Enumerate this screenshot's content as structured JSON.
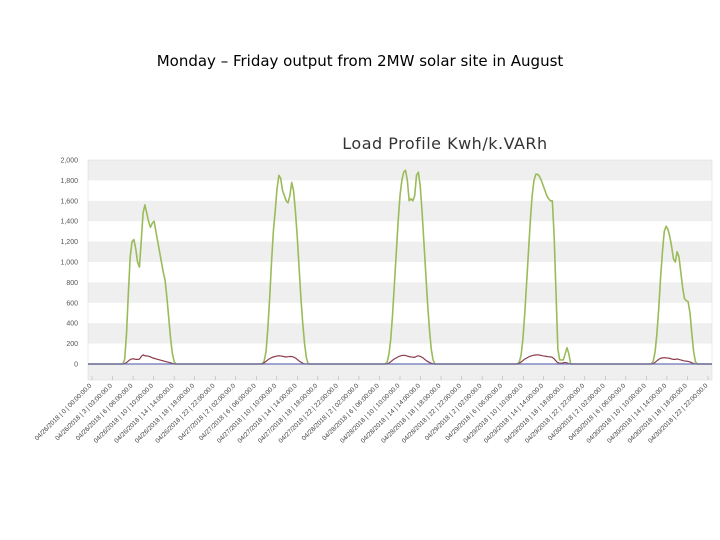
{
  "slide": {
    "title": "Monday – Friday output from 2MW solar site in August"
  },
  "colors": {
    "kwh": "#9bbb59",
    "kvarh": "#8b3a4a",
    "baseline": "#6b74b8",
    "band": "#efefef"
  },
  "chart_data": {
    "type": "line",
    "title": "Load Profile Kwh/k.VARh",
    "xlabel": "",
    "ylabel": "",
    "ylim": [
      0,
      2000
    ],
    "yticks": [
      0,
      200,
      400,
      600,
      800,
      1000,
      1200,
      1400,
      1600,
      1800,
      2000
    ],
    "ytick_labels": [
      "0",
      "200",
      "400",
      "600",
      "800",
      "1,000",
      "1,200",
      "1,400",
      "1,600",
      "1,800",
      "2,000"
    ],
    "grid": "alternating horizontal bands",
    "x_labels": [
      "04/26/2018 | 0 | 00:00:00.0",
      "04/26/2018 | 3 | 03:00:00.0",
      "04/26/2018 | 6 | 06:00:00.0",
      "04/26/2018 | 10 | 10:00:00.0",
      "04/26/2018 | 14 | 14:00:00.0",
      "04/26/2018 | 18 | 18:00:00.0",
      "04/26/2018 | 22 | 22:00:00.0",
      "04/27/2018 | 2 | 02:00:00.0",
      "04/27/2018 | 6 | 06:00:00.0",
      "04/27/2018 | 10 | 10:00:00.0",
      "04/27/2018 | 14 | 14:00:00.0",
      "04/27/2018 | 18 | 18:00:00.0",
      "04/27/2018 | 22 | 22:00:00.0",
      "04/28/2018 | 2 | 02:00:00.0",
      "04/28/2018 | 6 | 06:00:00.0",
      "04/28/2018 | 10 | 10:00:00.0",
      "04/28/2018 | 14 | 14:00:00.0",
      "04/28/2018 | 18 | 18:00:00.0",
      "04/28/2018 | 22 | 22:00:00.0",
      "04/29/2018 | 2 | 02:00:00.0",
      "04/29/2018 | 6 | 06:00:00.0",
      "04/29/2018 | 10 | 10:00:00.0",
      "04/29/2018 | 14 | 14:00:00.0",
      "04/29/2018 | 18 | 18:00:00.0",
      "04/29/2018 | 22 | 22:00:00.0",
      "04/30/2018 | 2 | 02:00:00.0",
      "04/30/2018 | 6 | 06:00:00.0",
      "04/30/2018 | 10 | 10:00:00.0",
      "04/30/2018 | 14 | 14:00:00.0",
      "04/30/2018 | 18 | 18:00:00.0",
      "04/30/2018 | 22 | 22:00:00.0"
    ],
    "series": [
      {
        "values": [
          0,
          0,
          0,
          0,
          0,
          0,
          0,
          0,
          0,
          0,
          0,
          0,
          0,
          0,
          0,
          0,
          0,
          0,
          0,
          0,
          50,
          300,
          700,
          1050,
          1200,
          1220,
          1130,
          1000,
          950,
          1200,
          1480,
          1560,
          1480,
          1400,
          1340,
          1380,
          1400,
          1300,
          1200,
          1100,
          1000,
          900,
          820,
          650,
          450,
          250,
          100,
          20,
          0,
          0,
          0,
          0,
          0,
          0,
          0,
          0,
          0,
          0,
          0,
          0,
          0,
          0,
          0,
          0,
          0,
          0,
          0,
          0,
          0,
          0,
          0,
          0,
          0,
          0,
          0,
          0,
          0,
          0,
          0,
          0,
          0,
          0,
          0,
          0,
          0,
          0,
          0,
          0,
          0,
          0,
          0,
          0,
          0,
          0,
          0,
          0,
          30,
          120,
          350,
          650,
          1000,
          1300,
          1500,
          1720,
          1850,
          1820,
          1700,
          1650,
          1600,
          1580,
          1650,
          1780,
          1700,
          1500,
          1250,
          950,
          650,
          400,
          200,
          60,
          0,
          0,
          0,
          0,
          0,
          0,
          0,
          0,
          0,
          0,
          0,
          0,
          0,
          0,
          0,
          0,
          0,
          0,
          0,
          0,
          0,
          0,
          0,
          0,
          0,
          0,
          0,
          0,
          0,
          0,
          0,
          0,
          0,
          0,
          0,
          0,
          0,
          0,
          0,
          0,
          0,
          0,
          0,
          20,
          100,
          250,
          500,
          800,
          1100,
          1400,
          1650,
          1800,
          1880,
          1900,
          1800,
          1600,
          1620,
          1600,
          1650,
          1850,
          1880,
          1750,
          1500,
          1200,
          900,
          600,
          350,
          150,
          40,
          0,
          0,
          0,
          0,
          0,
          0,
          0,
          0,
          0,
          0,
          0,
          0,
          0,
          0,
          0,
          0,
          0,
          0,
          0,
          0,
          0,
          0,
          0,
          0,
          0,
          0,
          0,
          0,
          0,
          0,
          0,
          0,
          0,
          0,
          0,
          0,
          0,
          0,
          0,
          0,
          0,
          0,
          0,
          0,
          0,
          0,
          20,
          90,
          250,
          500,
          800,
          1100,
          1400,
          1650,
          1800,
          1860,
          1860,
          1840,
          1800,
          1750,
          1700,
          1650,
          1620,
          1600,
          1600,
          1250,
          700,
          150,
          40,
          40,
          40,
          100,
          160,
          100,
          0,
          0,
          0,
          0,
          0,
          0,
          0,
          0,
          0,
          0,
          0,
          0,
          0,
          0,
          0,
          0,
          0,
          0,
          0,
          0,
          0,
          0,
          0,
          0,
          0,
          0,
          0,
          0,
          0,
          0,
          0,
          0,
          0,
          0,
          0,
          0,
          0,
          0,
          0,
          0,
          0,
          0,
          0,
          0,
          0,
          30,
          120,
          300,
          550,
          850,
          1100,
          1300,
          1350,
          1320,
          1250,
          1150,
          1030,
          1000,
          1100,
          1050,
          900,
          750,
          640,
          620,
          610,
          500,
          300,
          120,
          20,
          0,
          0,
          0,
          0,
          0,
          0,
          0,
          0,
          0
        ]
      },
      {
        "values": [
          0,
          0,
          0,
          0,
          0,
          0,
          0,
          0,
          0,
          0,
          0,
          0,
          0,
          0,
          0,
          0,
          0,
          0,
          0,
          0,
          5,
          15,
          30,
          45,
          50,
          50,
          45,
          45,
          48,
          75,
          90,
          80,
          80,
          75,
          70,
          60,
          55,
          50,
          45,
          40,
          35,
          30,
          25,
          20,
          15,
          10,
          5,
          0,
          0,
          0,
          0,
          0,
          0,
          0,
          0,
          0,
          0,
          0,
          0,
          0,
          0,
          0,
          0,
          0,
          0,
          0,
          0,
          0,
          0,
          0,
          0,
          0,
          0,
          0,
          0,
          0,
          0,
          0,
          0,
          0,
          0,
          0,
          0,
          0,
          0,
          0,
          0,
          0,
          0,
          0,
          0,
          0,
          0,
          0,
          0,
          5,
          15,
          30,
          45,
          55,
          65,
          70,
          75,
          80,
          80,
          78,
          75,
          70,
          70,
          72,
          75,
          72,
          65,
          55,
          40,
          25,
          15,
          5,
          0,
          0,
          0,
          0,
          0,
          0,
          0,
          0,
          0,
          0,
          0,
          0,
          0,
          0,
          0,
          0,
          0,
          0,
          0,
          0,
          0,
          0,
          0,
          0,
          0,
          0,
          0,
          0,
          0,
          0,
          0,
          0,
          0,
          0,
          0,
          0,
          0,
          0,
          0,
          0,
          0,
          0,
          0,
          0,
          0,
          5,
          15,
          30,
          45,
          55,
          65,
          75,
          80,
          85,
          85,
          80,
          75,
          70,
          68,
          65,
          70,
          80,
          78,
          70,
          60,
          45,
          30,
          20,
          10,
          5,
          0,
          0,
          0,
          0,
          0,
          0,
          0,
          0,
          0,
          0,
          0,
          0,
          0,
          0,
          0,
          0,
          0,
          0,
          0,
          0,
          0,
          0,
          0,
          0,
          0,
          0,
          0,
          0,
          0,
          0,
          0,
          0,
          0,
          0,
          0,
          0,
          0,
          0,
          0,
          0,
          0,
          0,
          0,
          0,
          0,
          0,
          5,
          15,
          30,
          45,
          55,
          65,
          75,
          80,
          85,
          88,
          90,
          88,
          85,
          80,
          78,
          75,
          72,
          70,
          68,
          55,
          35,
          15,
          8,
          8,
          10,
          15,
          12,
          5,
          0,
          0,
          0,
          0,
          0,
          0,
          0,
          0,
          0,
          0,
          0,
          0,
          0,
          0,
          0,
          0,
          0,
          0,
          0,
          0,
          0,
          0,
          0,
          0,
          0,
          0,
          0,
          0,
          0,
          0,
          0,
          0,
          0,
          0,
          0,
          0,
          0,
          0,
          0,
          0,
          0,
          0,
          0,
          0,
          0,
          5,
          15,
          30,
          45,
          55,
          60,
          62,
          60,
          58,
          55,
          50,
          45,
          45,
          50,
          45,
          40,
          35,
          30,
          28,
          25,
          20,
          12,
          5,
          0,
          0,
          0,
          0,
          0,
          0,
          0,
          0,
          0,
          0
        ]
      },
      {
        "values": [
          0,
          0
        ]
      }
    ]
  }
}
